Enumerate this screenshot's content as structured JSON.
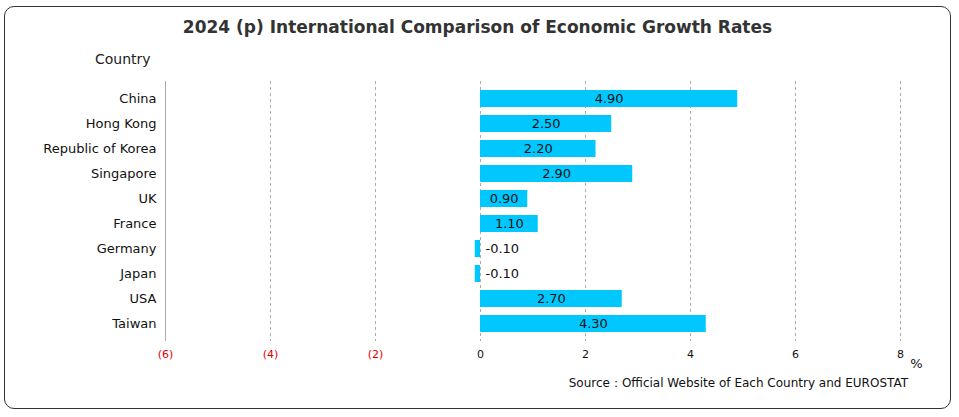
{
  "chart_data": {
    "type": "bar",
    "orientation": "horizontal",
    "title": "2024 (p) International Comparison of Economic Growth Rates",
    "ylabel": "Country",
    "xlabel": "%",
    "caption": "Source：Official Website of Each Country and EUROSTAT",
    "categories": [
      "China",
      "Hong Kong",
      "Republic of Korea",
      "Singapore",
      "UK",
      "France",
      "Germany",
      "Japan",
      "USA",
      "Taiwan"
    ],
    "values": [
      4.9,
      2.5,
      2.2,
      2.9,
      0.9,
      1.1,
      -0.1,
      -0.1,
      2.7,
      4.3
    ],
    "value_labels": [
      "4.90",
      "2.50",
      "2.20",
      "2.90",
      "0.90",
      "1.10",
      "-0.10",
      "-0.10",
      "2.70",
      "4.30"
    ],
    "data_labels": true,
    "color": "#00c8ff",
    "xlim": [
      -6,
      8
    ],
    "xticks": [
      {
        "value": -6,
        "label": "(6)"
      },
      {
        "value": -4,
        "label": "(4)"
      },
      {
        "value": -2,
        "label": "(2)"
      },
      0,
      2,
      4,
      6,
      8
    ],
    "grid": true
  }
}
